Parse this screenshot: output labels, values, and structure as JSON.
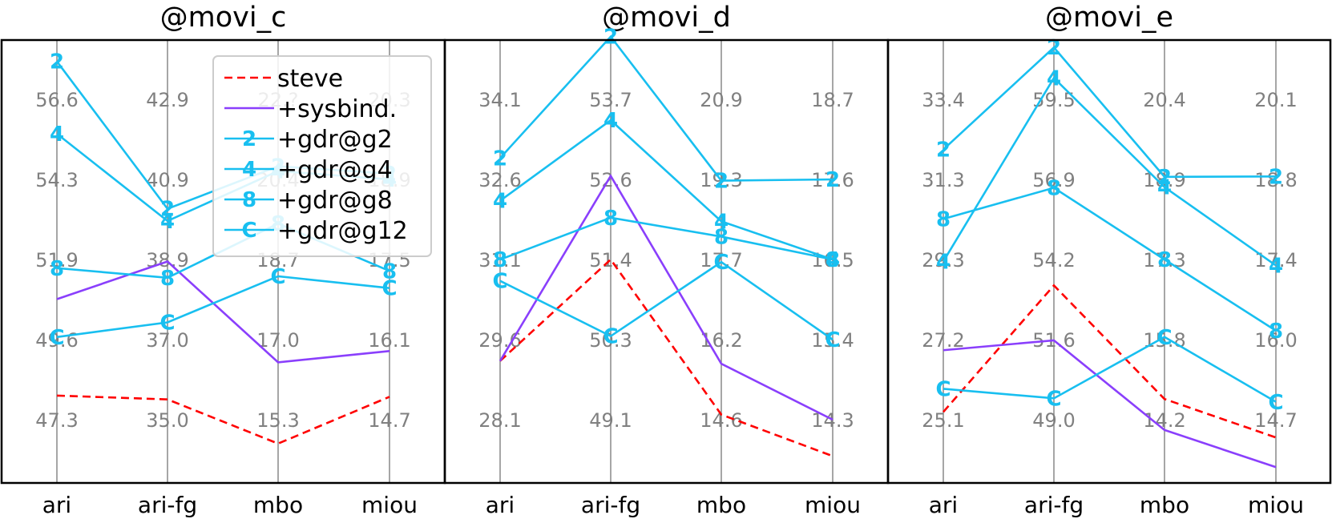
{
  "chart_data": {
    "type": "line",
    "axes": [
      "ari",
      "ari-fg",
      "mbo",
      "miou"
    ],
    "series_styles": [
      {
        "name": "steve",
        "color": "#ff0000",
        "dash": true,
        "marker": ""
      },
      {
        "name": "+sysbind.",
        "color": "#8a3ffc",
        "dash": false,
        "marker": ""
      },
      {
        "name": "+gdr@g2",
        "color": "#18bff0",
        "dash": false,
        "marker": "2"
      },
      {
        "name": "+gdr@g4",
        "color": "#18bff0",
        "dash": false,
        "marker": "4"
      },
      {
        "name": "+gdr@g8",
        "color": "#18bff0",
        "dash": false,
        "marker": "8"
      },
      {
        "name": "+gdr@g12",
        "color": "#18bff0",
        "dash": false,
        "marker": "C"
      }
    ],
    "panels": [
      {
        "title": "@movi_c",
        "ticks": [
          [
            "56.6",
            "54.3",
            "51.9",
            "49.6",
            "47.3"
          ],
          [
            "42.9",
            "40.9",
            "38.9",
            "37.0",
            "35.0"
          ],
          [
            "22.?",
            "20.4",
            "18.7",
            "17.0",
            "15.3"
          ],
          [
            "20.3",
            "18.9",
            "17.5",
            "16.1",
            "14.7"
          ]
        ],
        "series": [
          {
            "name": "steve",
            "values": [
              48.0,
              35.5,
              14.8,
              15.1
            ]
          },
          {
            "name": "+sysbind.",
            "values": [
              50.8,
              38.9,
              16.5,
              15.9
            ]
          },
          {
            "name": "+gdr@g2",
            "values": [
              57.7,
              40.2,
              20.6,
              19.0
            ]
          },
          {
            "name": "+gdr@g4",
            "values": [
              55.6,
              39.9,
              20.5,
              18.9
            ]
          },
          {
            "name": "+gdr@g8",
            "values": [
              51.7,
              38.5,
              19.4,
              17.3
            ]
          },
          {
            "name": "+gdr@g12",
            "values": [
              49.7,
              37.4,
              18.3,
              17.0
            ]
          }
        ]
      },
      {
        "title": "@movi_d",
        "ticks": [
          [
            "34.1",
            "32.6",
            "31.1",
            "29.6",
            "28.1"
          ],
          [
            "53.7",
            "52.6",
            "51.4",
            "50.3",
            "49.1"
          ],
          [
            "20.9",
            "19.3",
            "17.7",
            "16.2",
            "14.6"
          ],
          [
            "18.7",
            "17.6",
            "16.5",
            "15.4",
            "14.3"
          ]
        ],
        "series": [
          {
            "name": "steve",
            "values": [
              29.2,
              51.4,
              14.7,
              13.8
            ]
          },
          {
            "name": "+sysbind.",
            "values": [
              29.2,
              52.6,
              15.7,
              14.3
            ]
          },
          {
            "name": "+gdr@g2",
            "values": [
              33.0,
              54.6,
              19.3,
              17.6
            ]
          },
          {
            "name": "+gdr@g4",
            "values": [
              32.2,
              53.4,
              18.5,
              16.5
            ]
          },
          {
            "name": "+gdr@g8",
            "values": [
              31.1,
              52.0,
              18.2,
              16.5
            ]
          },
          {
            "name": "+gdr@g12",
            "values": [
              30.7,
              50.3,
              17.7,
              15.4
            ]
          }
        ]
      },
      {
        "title": "@movi_e",
        "ticks": [
          [
            "33.4",
            "31.3",
            "29.3",
            "27.2",
            "25.1"
          ],
          [
            "59.5",
            "56.9",
            "54.2",
            "51.6",
            "49.0"
          ],
          [
            "20.4",
            "18.9",
            "17.3",
            "15.8",
            "14.2"
          ],
          [
            "20.1",
            "18.8",
            "17.4",
            "16.0",
            "14.7"
          ]
        ],
        "series": [
          {
            "name": "steve",
            "values": [
              25.3,
              53.4,
              14.6,
              14.4
            ]
          },
          {
            "name": "+sysbind.",
            "values": [
              26.9,
              51.6,
              14.0,
              13.9
            ]
          },
          {
            "name": "+gdr@g2",
            "values": [
              32.1,
              61.2,
              18.9,
              18.8
            ]
          },
          {
            "name": "+gdr@g4",
            "values": [
              29.2,
              60.2,
              18.7,
              17.3
            ]
          },
          {
            "name": "+gdr@g8",
            "values": [
              30.3,
              56.6,
              17.3,
              16.2
            ]
          },
          {
            "name": "+gdr@g12",
            "values": [
              25.9,
              49.7,
              15.8,
              15.0
            ]
          }
        ]
      }
    ],
    "legend_location": "top-right of first panel",
    "grid": "vertical axes only"
  }
}
